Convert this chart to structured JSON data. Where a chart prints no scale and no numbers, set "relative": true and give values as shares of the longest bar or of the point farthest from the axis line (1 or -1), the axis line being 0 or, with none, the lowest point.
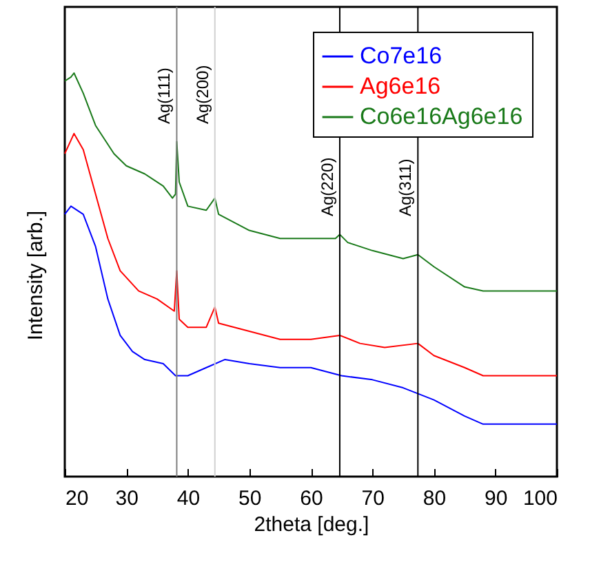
{
  "chart_data": {
    "type": "line",
    "xlabel": "2theta [deg.]",
    "ylabel": "Intensity [arb.]",
    "relative": true,
    "xlim": [
      20,
      100
    ],
    "xticks": [
      20,
      30,
      40,
      50,
      60,
      70,
      80,
      90,
      100
    ],
    "grid": false,
    "legend": "top right",
    "line_style": "solid",
    "series": [
      {
        "name": "Co7e16",
        "color": "#0000ff",
        "x": [
          20,
          21,
          23,
          25,
          27,
          29,
          31,
          33,
          36,
          38,
          40,
          43,
          46,
          50,
          55,
          60,
          65,
          70,
          75,
          80,
          85,
          88,
          95,
          100
        ],
        "values": [
          0.65,
          0.67,
          0.65,
          0.57,
          0.44,
          0.35,
          0.31,
          0.29,
          0.28,
          0.25,
          0.25,
          0.27,
          0.29,
          0.28,
          0.27,
          0.27,
          0.25,
          0.24,
          0.22,
          0.19,
          0.15,
          0.13,
          0.13,
          0.13
        ]
      },
      {
        "name": "Ag6e16",
        "color": "#ff0000",
        "x": [
          20,
          21.5,
          23,
          25,
          27,
          29,
          32,
          35,
          37.8,
          38.2,
          38.6,
          40,
          43,
          44.4,
          45,
          50,
          55,
          60,
          64.7,
          68,
          72,
          77.4,
          80,
          85,
          88,
          95,
          100
        ],
        "values": [
          0.8,
          0.85,
          0.81,
          0.7,
          0.59,
          0.51,
          0.46,
          0.44,
          0.41,
          0.51,
          0.39,
          0.37,
          0.37,
          0.42,
          0.38,
          0.36,
          0.34,
          0.34,
          0.35,
          0.33,
          0.32,
          0.33,
          0.3,
          0.27,
          0.25,
          0.25,
          0.25
        ]
      },
      {
        "name": "Co6e16Ag6e16",
        "color": "#1a7a1a",
        "x": [
          20,
          21,
          21.5,
          23,
          25,
          28,
          30,
          33,
          36,
          37.5,
          38,
          38.2,
          38.6,
          40,
          43,
          44.4,
          45,
          50,
          55,
          60,
          64,
          64.7,
          66,
          70,
          75,
          77.4,
          80,
          85,
          88,
          90,
          95,
          100
        ],
        "values": [
          0.98,
          0.99,
          1,
          0.95,
          0.87,
          0.8,
          0.77,
          0.75,
          0.72,
          0.69,
          0.7,
          0.83,
          0.73,
          0.67,
          0.66,
          0.69,
          0.65,
          0.61,
          0.59,
          0.59,
          0.59,
          0.6,
          0.58,
          0.56,
          0.54,
          0.55,
          0.52,
          0.47,
          0.46,
          0.46,
          0.46,
          0.46
        ]
      }
    ],
    "ref_lines": [
      {
        "axis": "x",
        "value": 38.2,
        "label": "Ag(111)",
        "color": "#808080"
      },
      {
        "axis": "x",
        "value": 44.4,
        "label": "Ag(200)",
        "color": "#d0d0d0"
      },
      {
        "axis": "x",
        "value": 64.7,
        "label": "Ag(220)",
        "color": "#000000"
      },
      {
        "axis": "x",
        "value": 77.4,
        "label": "Ag(311)",
        "color": "#000000"
      }
    ]
  }
}
